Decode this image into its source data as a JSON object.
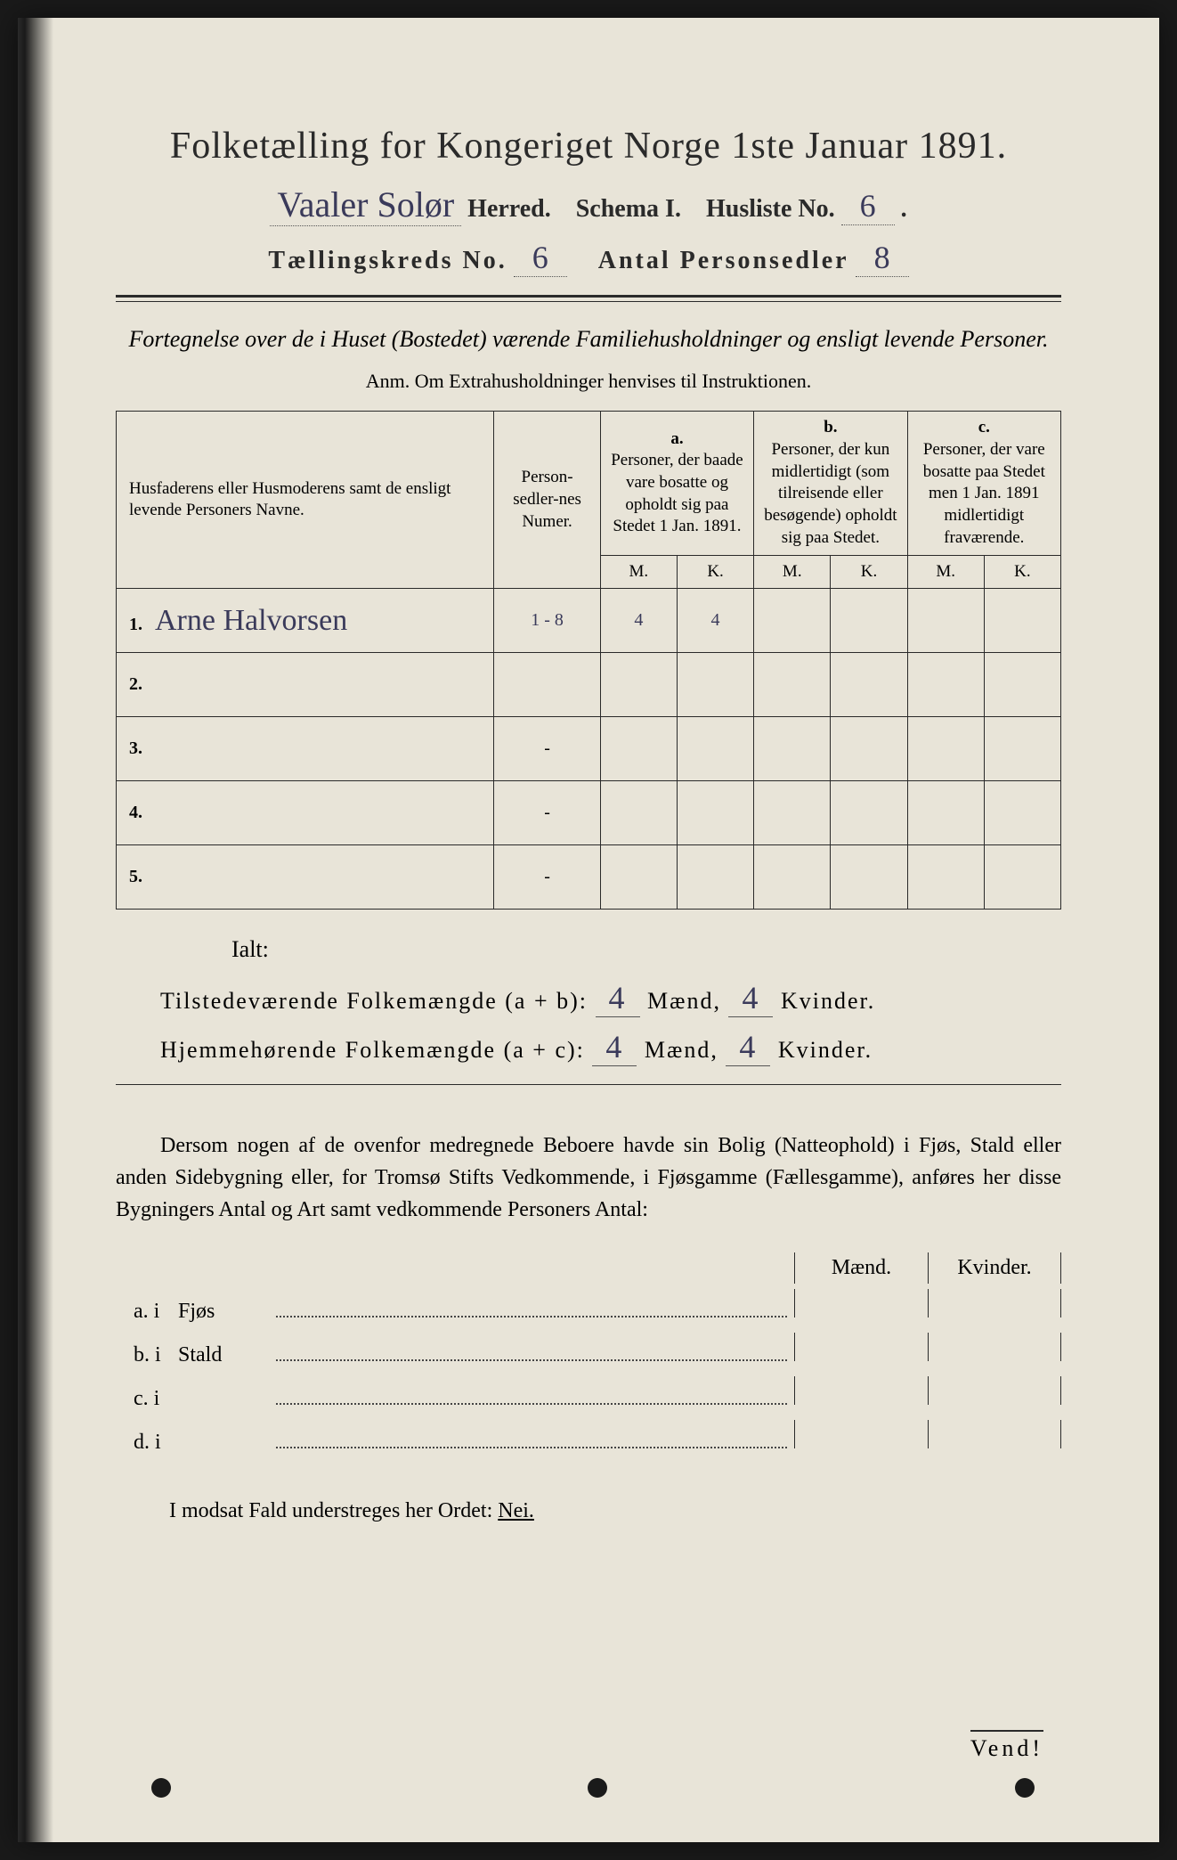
{
  "title": "Folketælling for Kongeriget Norge 1ste Januar 1891.",
  "herred_value": "Vaaler Solør",
  "herred_label": "Herred.",
  "schema_label": "Schema I.",
  "husliste_label": "Husliste No.",
  "husliste_value": "6",
  "kreds_label": "Tællingskreds No.",
  "kreds_value": "6",
  "antal_label": "Antal Personsedler",
  "antal_value": "8",
  "fortegnelse": "Fortegnelse over de i Huset (Bostedet) værende Familiehusholdninger og ensligt levende Personer.",
  "anm": "Anm. Om Extrahusholdninger henvises til Instruktionen.",
  "table": {
    "head_name": "Husfaderens eller Husmoderens samt de ensligt levende Personers Navne.",
    "head_num": "Person-sedler-nes Numer.",
    "col_a_letter": "a.",
    "col_a": "Personer, der baade vare bosatte og opholdt sig paa Stedet 1 Jan. 1891.",
    "col_b_letter": "b.",
    "col_b": "Personer, der kun midlertidigt (som tilreisende eller besøgende) opholdt sig paa Stedet.",
    "col_c_letter": "c.",
    "col_c": "Personer, der vare bosatte paa Stedet men 1 Jan. 1891 midlertidigt fraværende.",
    "m": "M.",
    "k": "K.",
    "rows": [
      {
        "n": "1.",
        "name": "Arne Halvorsen",
        "num": "1 - 8",
        "a_m": "4",
        "a_k": "4",
        "b_m": "",
        "b_k": "",
        "c_m": "",
        "c_k": ""
      },
      {
        "n": "2.",
        "name": "",
        "num": "",
        "a_m": "",
        "a_k": "",
        "b_m": "",
        "b_k": "",
        "c_m": "",
        "c_k": ""
      },
      {
        "n": "3.",
        "name": "",
        "num": "-",
        "a_m": "",
        "a_k": "",
        "b_m": "",
        "b_k": "",
        "c_m": "",
        "c_k": ""
      },
      {
        "n": "4.",
        "name": "",
        "num": "-",
        "a_m": "",
        "a_k": "",
        "b_m": "",
        "b_k": "",
        "c_m": "",
        "c_k": ""
      },
      {
        "n": "5.",
        "name": "",
        "num": "-",
        "a_m": "",
        "a_k": "",
        "b_m": "",
        "b_k": "",
        "c_m": "",
        "c_k": ""
      }
    ]
  },
  "ialt": "Ialt:",
  "tilstede_label": "Tilstedeværende Folkemængde (a + b):",
  "hjemme_label": "Hjemmehørende Folkemængde (a + c):",
  "tilstede_m": "4",
  "tilstede_k": "4",
  "hjemme_m": "4",
  "hjemme_k": "4",
  "maend": "Mænd,",
  "kvinder": "Kvinder.",
  "dersom": "Dersom nogen af de ovenfor medregnede Beboere havde sin Bolig (Natteophold) i Fjøs, Stald eller anden Sidebygning eller, for Tromsø Stifts Vedkommende, i Fjøsgamme (Fællesgamme), anføres her disse Bygningers Antal og Art samt vedkommende Personers Antal:",
  "maend2": "Mænd.",
  "kvinder2": "Kvinder.",
  "rows2": {
    "a": {
      "lead": "a.  i",
      "label": "Fjøs"
    },
    "b": {
      "lead": "b.  i",
      "label": "Stald"
    },
    "c": {
      "lead": "c.  i",
      "label": ""
    },
    "d": {
      "lead": "d.  i",
      "label": ""
    }
  },
  "modsat": "I modsat Fald understreges her Ordet: ",
  "nei": "Nei.",
  "vend": "Vend!",
  "colors": {
    "paper": "#e8e4d8",
    "ink": "#2a2a2a",
    "handwriting": "#3a3a5a",
    "background": "#1a1a1a"
  }
}
